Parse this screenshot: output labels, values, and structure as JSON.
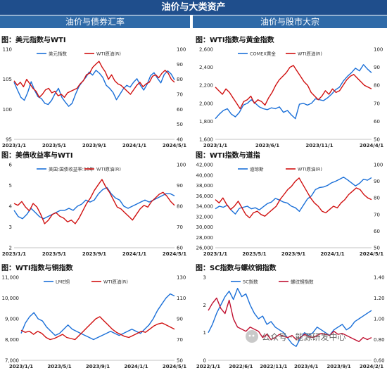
{
  "header": {
    "title": "油价与大类资产",
    "left_section": "油价与债券汇率",
    "right_section": "油价与股市大宗"
  },
  "watermark": "公众号 · 能源研发中心",
  "colors": {
    "blue": "#1a6fd8",
    "red": "#d01010",
    "header": "#1f4e8c",
    "section": "#2f6aa8"
  },
  "chart_data": [
    {
      "id": "usd-wti",
      "type": "line",
      "title": "图：美元指数与WTI",
      "x_labels": [
        "2023/1/1",
        "2023/5/1",
        "2023/9/1",
        "2024/1/1",
        "2024/5/1"
      ],
      "y_left": {
        "ticks": [
          "110",
          "105",
          "100",
          "95"
        ],
        "min": 95,
        "max": 110
      },
      "y_right": {
        "ticks": [
          "100",
          "90",
          "80",
          "70",
          "60",
          "50",
          "40"
        ],
        "min": 40,
        "max": 100
      },
      "series": [
        {
          "name": "美元指数",
          "axis": "left",
          "color": "#1a6fd8",
          "values": [
            104.5,
            103.2,
            102.0,
            101.5,
            102.8,
            104.6,
            103.2,
            102.1,
            101.8,
            101.0,
            100.8,
            101.5,
            102.6,
            103.5,
            102.0,
            101.2,
            100.5,
            101.0,
            102.5,
            103.8,
            104.6,
            105.3,
            106.2,
            105.7,
            106.5,
            106.0,
            105.3,
            104.0,
            103.5,
            102.8,
            101.6,
            102.5,
            103.4,
            104.0,
            103.7,
            104.5,
            105.1,
            104.0,
            103.2,
            104.2,
            105.6,
            106.1,
            105.2,
            104.4,
            105.8,
            106.4,
            105.9,
            104.9
          ]
        },
        {
          "name": "WTI原油(R)",
          "axis": "right",
          "color": "#d01010",
          "values": [
            79,
            76,
            78,
            75,
            80,
            77,
            74,
            72,
            68,
            70,
            73,
            74,
            71,
            72,
            69,
            70,
            68,
            71,
            72,
            73,
            74,
            77,
            79,
            83,
            84,
            88,
            90,
            92,
            88,
            85,
            80,
            83,
            79,
            77,
            76,
            74,
            72,
            70,
            73,
            76,
            78,
            75,
            77,
            78,
            82,
            83,
            81,
            84,
            86,
            84,
            80,
            78
          ]
        }
      ]
    },
    {
      "id": "gold-wti",
      "type": "line",
      "title": "图：WTI指数与黄金指数",
      "x_labels": [
        "2023/1/1",
        "2023/6/1",
        "2023/11/1",
        "2024/4/1"
      ],
      "y_left": {
        "ticks": [
          "2,600",
          "2,400",
          "2,200",
          "2,000",
          "1,800",
          "1,600"
        ],
        "min": 1600,
        "max": 2600
      },
      "y_right": {
        "ticks": [
          "100",
          "90",
          "80",
          "70",
          "60",
          "50"
        ],
        "min": 50,
        "max": 100
      },
      "series": [
        {
          "name": "COMEX黄金",
          "axis": "left",
          "color": "#1a6fd8",
          "values": [
            1830,
            1880,
            1920,
            1940,
            1880,
            1850,
            1900,
            1980,
            2000,
            2040,
            2000,
            1960,
            1940,
            1930,
            1950,
            1940,
            1960,
            1900,
            1920,
            1870,
            1830,
            1990,
            2000,
            1980,
            2000,
            2050,
            2040,
            2030,
            2060,
            2100,
            2150,
            2180,
            2250,
            2300,
            2340,
            2390,
            2360,
            2430,
            2380,
            2340
          ]
        },
        {
          "name": "WTI原油(R)",
          "axis": "right",
          "color": "#d01010",
          "values": [
            79,
            77,
            75,
            78,
            76,
            73,
            70,
            67,
            71,
            72,
            74,
            70,
            72,
            71,
            69,
            73,
            76,
            80,
            83,
            85,
            87,
            90,
            91,
            88,
            85,
            82,
            80,
            76,
            74,
            72,
            74,
            77,
            75,
            78,
            76,
            77,
            80,
            83,
            85,
            86,
            84,
            82,
            80,
            79,
            78
          ]
        }
      ]
    },
    {
      "id": "treasury-wti",
      "type": "line",
      "title": "图：美债收益率与WTI",
      "x_labels": [
        "2023/1/1",
        "2023/5/1",
        "2023/9/1",
        "2024/1/1",
        "2024/5/1"
      ],
      "y_left": {
        "ticks": [
          "6",
          "5",
          "4",
          "3",
          "2"
        ],
        "min": 2,
        "max": 6
      },
      "y_right": {
        "ticks": [
          "100",
          "90",
          "80",
          "70",
          "60"
        ],
        "min": 55,
        "max": 100
      },
      "series": [
        {
          "name": "美国:国债收益率:10年",
          "axis": "left",
          "color": "#1a6fd8",
          "values": [
            3.8,
            3.5,
            3.4,
            3.6,
            3.9,
            3.7,
            3.5,
            3.4,
            3.5,
            3.6,
            3.7,
            3.8,
            3.8,
            3.9,
            3.8,
            4.0,
            4.1,
            4.3,
            4.2,
            4.3,
            4.6,
            4.8,
            4.9,
            4.6,
            4.4,
            4.3,
            4.0,
            3.9,
            4.0,
            4.1,
            4.2,
            4.3,
            4.2,
            4.3,
            4.4,
            4.5,
            4.6,
            4.6,
            4.5
          ]
        },
        {
          "name": "WTI原油(R)",
          "axis": "right",
          "color": "#d01010",
          "values": [
            79,
            78,
            80,
            77,
            75,
            79,
            77,
            73,
            68,
            70,
            73,
            74,
            72,
            71,
            69,
            70,
            68,
            71,
            75,
            79,
            82,
            86,
            89,
            92,
            88,
            85,
            81,
            77,
            76,
            74,
            72,
            70,
            73,
            76,
            78,
            77,
            80,
            82,
            84,
            85,
            83,
            80,
            78
          ]
        }
      ]
    },
    {
      "id": "dow-wti",
      "type": "line",
      "title": "图：WTI指数与道指",
      "x_labels": [
        "2023/1/1",
        "2023/5/1",
        "2023/9/1",
        "2024/1/1",
        "2024/5/1"
      ],
      "y_left": {
        "ticks": [
          "42,000",
          "40,000",
          "38,000",
          "36,000",
          "34,000",
          "32,000",
          "30,000",
          "28,000",
          "26,000"
        ],
        "min": 26000,
        "max": 42000
      },
      "y_right": {
        "ticks": [
          "100",
          "90",
          "80",
          "70",
          "60",
          "50"
        ],
        "min": 50,
        "max": 100
      },
      "series": [
        {
          "name": "道琼斯",
          "axis": "left",
          "color": "#1a6fd8",
          "values": [
            33500,
            34000,
            33800,
            34200,
            33200,
            32500,
            33600,
            33800,
            34000,
            33500,
            33700,
            33300,
            33900,
            34500,
            34800,
            35500,
            35200,
            34800,
            34600,
            34000,
            33700,
            33000,
            34200,
            35400,
            36000,
            37200,
            37600,
            37700,
            38000,
            38500,
            38800,
            39200,
            39600,
            39100,
            38500,
            37900,
            38400,
            39200,
            39000,
            39500
          ]
        },
        {
          "name": "WTI原油(R)",
          "axis": "right",
          "color": "#d01010",
          "values": [
            79,
            77,
            80,
            76,
            73,
            75,
            78,
            74,
            70,
            68,
            71,
            72,
            70,
            69,
            71,
            73,
            75,
            79,
            82,
            85,
            87,
            90,
            92,
            88,
            84,
            80,
            77,
            75,
            72,
            71,
            73,
            75,
            74,
            77,
            79,
            82,
            84,
            86,
            85,
            82,
            80,
            79
          ]
        }
      ]
    },
    {
      "id": "lme-wti",
      "type": "line",
      "title": "图：WTI指数与铜指数",
      "x_labels": [
        "2023/1/1",
        "2023/5/1",
        "2023/9/1",
        "2024/1/1",
        "2024/5/1"
      ],
      "y_left": {
        "ticks": [
          "11,000",
          "10,000",
          "9,000",
          "8,000",
          "7,000"
        ],
        "min": 7000,
        "max": 11000
      },
      "y_right": {
        "ticks": [
          "130",
          "110",
          "90",
          "70",
          "50"
        ],
        "min": 50,
        "max": 130
      },
      "series": [
        {
          "name": "LME铜",
          "axis": "left",
          "color": "#1a6fd8",
          "values": [
            8300,
            8800,
            9100,
            9300,
            9000,
            8900,
            8600,
            8400,
            8200,
            8300,
            8500,
            8700,
            8500,
            8400,
            8300,
            8200,
            8100,
            8000,
            8100,
            8200,
            8300,
            8400,
            8300,
            8200,
            8300,
            8400,
            8500,
            8400,
            8300,
            8500,
            8700,
            9000,
            9400,
            9700,
            10000,
            10200,
            10100
          ]
        },
        {
          "name": "WTI原油(R)",
          "axis": "right",
          "color": "#d01010",
          "values": [
            79,
            77,
            78,
            75,
            78,
            76,
            72,
            70,
            71,
            73,
            75,
            72,
            71,
            70,
            74,
            78,
            82,
            86,
            90,
            92,
            88,
            84,
            80,
            77,
            75,
            73,
            72,
            74,
            76,
            78,
            77,
            80,
            83,
            85,
            86,
            84,
            82,
            80
          ]
        }
      ]
    },
    {
      "id": "sc-rebar",
      "type": "line",
      "title": "图：SC指数与螺纹钢指数",
      "x_labels": [
        "2022/1/1",
        "2022/6/1",
        "2022/11/1",
        "2023/4/1",
        "2023/9/1",
        "2024/2/1"
      ],
      "y_left": {
        "ticks": [
          "3",
          "2",
          "1",
          "0"
        ],
        "min": 0,
        "max": 3
      },
      "y_right": {
        "ticks": [
          "1.40",
          "1.20",
          "1.00",
          "0.80",
          "0.60"
        ],
        "min": 0.6,
        "max": 1.4
      },
      "series": [
        {
          "name": "SC指数",
          "axis": "left",
          "color": "#1a6fd8",
          "values": [
            1.0,
            1.3,
            1.7,
            2.0,
            2.3,
            2.5,
            2.2,
            2.6,
            2.3,
            2.4,
            2.0,
            1.7,
            1.5,
            1.6,
            1.3,
            1.4,
            1.2,
            1.1,
            1.0,
            0.8,
            0.6,
            0.5,
            0.8,
            1.0,
            0.9,
            1.0,
            1.2,
            1.1,
            1.0,
            0.9,
            1.1,
            1.2,
            1.3,
            1.1,
            1.2,
            1.4,
            1.5,
            1.6,
            1.7,
            1.8
          ]
        },
        {
          "name": "螺纹钢指数",
          "axis": "right",
          "color": "#c01030",
          "values": [
            1.08,
            1.15,
            1.2,
            1.1,
            1.05,
            1.18,
            1.0,
            0.92,
            0.9,
            0.88,
            0.92,
            0.9,
            0.88,
            0.82,
            0.85,
            0.8,
            0.82,
            0.85,
            0.83,
            0.82,
            0.84,
            0.8,
            0.82,
            0.85,
            0.83,
            0.82,
            0.84,
            0.86,
            0.85,
            0.84,
            0.88,
            0.85,
            0.86,
            0.84,
            0.82,
            0.8,
            0.78,
            0.82,
            0.8,
            0.82
          ]
        }
      ]
    }
  ]
}
